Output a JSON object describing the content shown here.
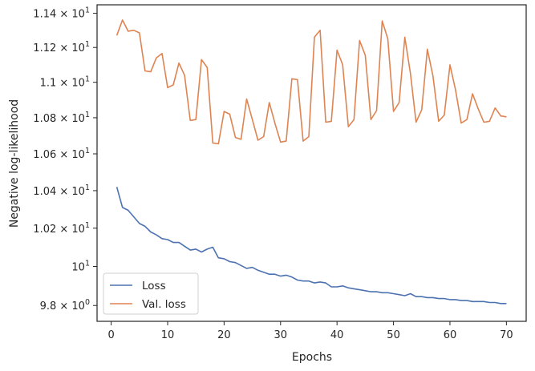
{
  "chart_data": {
    "type": "line",
    "title": "",
    "xlabel": "Epochs",
    "ylabel": "Negative log-likelihood",
    "yscale": "log",
    "xlim": [
      -2.5,
      73.5
    ],
    "ylim": [
      9.72,
      11.45
    ],
    "grid": false,
    "legend_position": "lower-left",
    "xticks": [
      0,
      10,
      20,
      30,
      40,
      50,
      60,
      70
    ],
    "xtick_labels": [
      "0",
      "10",
      "20",
      "30",
      "40",
      "50",
      "60",
      "70"
    ],
    "yticks": [
      9.8,
      10.0,
      10.2,
      10.4,
      10.6,
      10.8,
      11.0,
      11.2,
      11.4
    ],
    "ytick_parts": [
      {
        "mant": "9.8",
        "sep": " × ",
        "base": "10",
        "exp": "0"
      },
      {
        "mant": "",
        "sep": "",
        "base": "10",
        "exp": "1"
      },
      {
        "mant": "1.02",
        "sep": " × ",
        "base": "10",
        "exp": "1"
      },
      {
        "mant": "1.04",
        "sep": " × ",
        "base": "10",
        "exp": "1"
      },
      {
        "mant": "1.06",
        "sep": " × ",
        "base": "10",
        "exp": "1"
      },
      {
        "mant": "1.08",
        "sep": " × ",
        "base": "10",
        "exp": "1"
      },
      {
        "mant": "1.1",
        "sep": " × ",
        "base": "10",
        "exp": "1"
      },
      {
        "mant": "1.12",
        "sep": " × ",
        "base": "10",
        "exp": "1"
      },
      {
        "mant": "1.14",
        "sep": " × ",
        "base": "10",
        "exp": "1"
      }
    ],
    "x": [
      1,
      2,
      3,
      4,
      5,
      6,
      7,
      8,
      9,
      10,
      11,
      12,
      13,
      14,
      15,
      16,
      17,
      18,
      19,
      20,
      21,
      22,
      23,
      24,
      25,
      26,
      27,
      28,
      29,
      30,
      31,
      32,
      33,
      34,
      35,
      36,
      37,
      38,
      39,
      40,
      41,
      42,
      43,
      44,
      45,
      46,
      47,
      48,
      49,
      50,
      51,
      52,
      53,
      54,
      55,
      56,
      57,
      58,
      59,
      60,
      61,
      62,
      63,
      64,
      65,
      66,
      67,
      68,
      69,
      70
    ],
    "series": [
      {
        "name": "Loss",
        "color": "#4c72b0",
        "values": [
          10.42,
          10.31,
          10.295,
          10.26,
          10.225,
          10.21,
          10.18,
          10.165,
          10.145,
          10.14,
          10.125,
          10.125,
          10.105,
          10.085,
          10.09,
          10.075,
          10.09,
          10.1,
          10.045,
          10.04,
          10.025,
          10.02,
          10.005,
          9.99,
          9.995,
          9.98,
          9.97,
          9.96,
          9.96,
          9.95,
          9.955,
          9.945,
          9.93,
          9.925,
          9.925,
          9.915,
          9.92,
          9.915,
          9.895,
          9.895,
          9.9,
          9.89,
          9.885,
          9.88,
          9.875,
          9.87,
          9.87,
          9.865,
          9.865,
          9.86,
          9.855,
          9.85,
          9.86,
          9.845,
          9.845,
          9.84,
          9.84,
          9.835,
          9.835,
          9.83,
          9.83,
          9.825,
          9.825,
          9.82,
          9.82,
          9.82,
          9.815,
          9.815,
          9.81,
          9.81
        ]
      },
      {
        "name": "Val. loss",
        "color": "#dd8452",
        "values": [
          11.27,
          11.36,
          11.295,
          11.3,
          11.285,
          11.065,
          11.06,
          11.14,
          11.165,
          10.97,
          10.985,
          11.11,
          11.04,
          10.785,
          10.79,
          11.13,
          11.085,
          10.66,
          10.655,
          10.835,
          10.82,
          10.69,
          10.68,
          10.905,
          10.79,
          10.675,
          10.695,
          10.885,
          10.77,
          10.665,
          10.67,
          11.02,
          11.015,
          10.67,
          10.695,
          11.26,
          11.3,
          10.775,
          10.78,
          11.185,
          11.1,
          10.75,
          10.79,
          11.24,
          11.155,
          10.79,
          10.84,
          11.355,
          11.25,
          10.835,
          10.885,
          11.26,
          11.05,
          10.775,
          10.845,
          11.19,
          11.035,
          10.78,
          10.815,
          11.1,
          10.955,
          10.77,
          10.79,
          10.935,
          10.85,
          10.775,
          10.78,
          10.855,
          10.81,
          10.805
        ]
      }
    ]
  }
}
